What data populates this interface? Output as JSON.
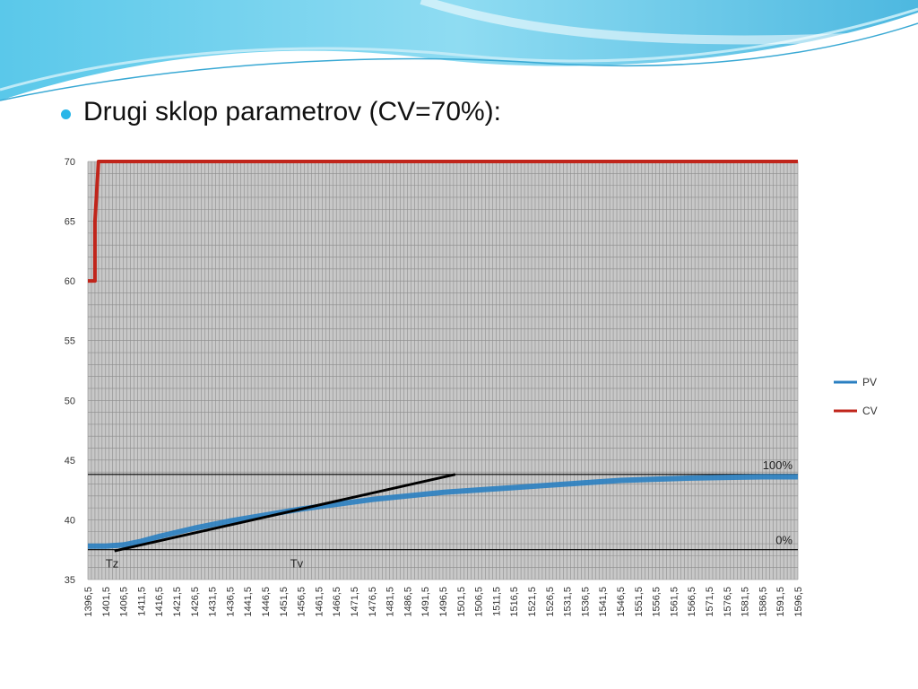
{
  "slide": {
    "heading": "Drugi sklop parametrov (CV=70%):"
  },
  "colors": {
    "accent": "#29b6e8",
    "pv": "#2a7fc1",
    "cv": "#c0251b",
    "plot_bg": "#c8c8c8",
    "grid": "#8c8c8c"
  },
  "chart_data": {
    "type": "line",
    "title": "",
    "xlabel": "",
    "ylabel": "",
    "ylim": [
      35,
      70
    ],
    "yticks": [
      35,
      40,
      45,
      50,
      55,
      60,
      65,
      70
    ],
    "xlim": [
      1396.5,
      1596.5
    ],
    "x_tick_labels": [
      "1396,5",
      "1401,5",
      "1406,5",
      "1411,5",
      "1416,5",
      "1421,5",
      "1426,5",
      "1431,5",
      "1436,5",
      "1441,5",
      "1446,5",
      "1451,5",
      "1456,5",
      "1461,5",
      "1466,5",
      "1471,5",
      "1476,5",
      "1481,5",
      "1486,5",
      "1491,5",
      "1496,5",
      "1501,5",
      "1506,5",
      "1511,5",
      "1516,5",
      "1521,5",
      "1526,5",
      "1531,5",
      "1536,5",
      "1541,5",
      "1546,5",
      "1551,5",
      "1556,5",
      "1561,5",
      "1566,5",
      "1571,5",
      "1576,5",
      "1581,5",
      "1586,5",
      "1591,5",
      "1596,5"
    ],
    "grid": true,
    "legend_position": "right",
    "series": [
      {
        "name": "PV",
        "color": "#2a7fc1",
        "x": [
          1396.5,
          1401.5,
          1406.5,
          1411.5,
          1416.5,
          1426.5,
          1436.5,
          1446.5,
          1456.5,
          1466.5,
          1476.5,
          1486.5,
          1496.5,
          1506.5,
          1516.5,
          1526.5,
          1536.5,
          1546.5,
          1556.5,
          1566.5,
          1576.5,
          1586.5,
          1596.5
        ],
        "values": [
          37.8,
          37.8,
          37.9,
          38.2,
          38.6,
          39.3,
          39.9,
          40.4,
          40.9,
          41.3,
          41.7,
          42.0,
          42.3,
          42.5,
          42.7,
          42.9,
          43.1,
          43.3,
          43.4,
          43.5,
          43.55,
          43.6,
          43.6
        ]
      },
      {
        "name": "CV",
        "color": "#c0251b",
        "x": [
          1396.5,
          1398.5,
          1398.5,
          1399.5,
          1596.5
        ],
        "values": [
          60,
          60,
          65,
          70,
          70
        ]
      }
    ],
    "reference_lines": [
      {
        "label": "100%",
        "value": 43.8,
        "color": "#000000"
      },
      {
        "label": "0%",
        "value": 37.5,
        "color": "#000000"
      }
    ],
    "tangent": {
      "x": [
        1404,
        1500
      ],
      "values": [
        37.4,
        43.8
      ],
      "color": "#000000"
    },
    "annotations": [
      {
        "text": "Tz",
        "x": 1401.5,
        "y": 36.0
      },
      {
        "text": "Tv",
        "x": 1453.5,
        "y": 36.0
      }
    ]
  }
}
